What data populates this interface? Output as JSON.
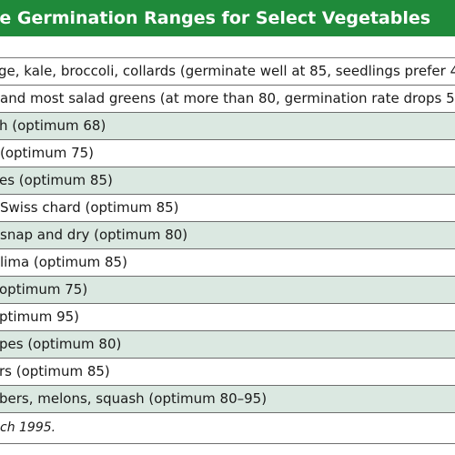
{
  "title": "re Germination Ranges for Select Vegetables",
  "rows": [
    {
      "text": "ge, kale, broccoli, collards (germinate well at 85, seedlings prefer 4",
      "shaded": false
    },
    {
      "text": "and most salad greens (at more than 80, germination rate drops 5",
      "shaded": false
    },
    {
      "text": "h (optimum 68)",
      "shaded": true
    },
    {
      "text": "(optimum 75)",
      "shaded": false
    },
    {
      "text": "es (optimum 85)",
      "shaded": true
    },
    {
      "text": "Swiss chard (optimum 85)",
      "shaded": false
    },
    {
      "text": "snap and dry (optimum 80)",
      "shaded": true
    },
    {
      "text": "lima (optimum 85)",
      "shaded": false
    },
    {
      "text": "optimum 75)",
      "shaded": true
    },
    {
      "text": "ptimum 95)",
      "shaded": false
    },
    {
      "text": "pes (optimum 80)",
      "shaded": true
    },
    {
      "text": "rs (optimum 85)",
      "shaded": false
    },
    {
      "text": "bers, melons, squash (optimum 80–95)",
      "shaded": true
    }
  ],
  "footer": "ch 1995.",
  "colors": {
    "title_bg": "#1f8a3a",
    "row_shade": "#dbe8e1"
  }
}
